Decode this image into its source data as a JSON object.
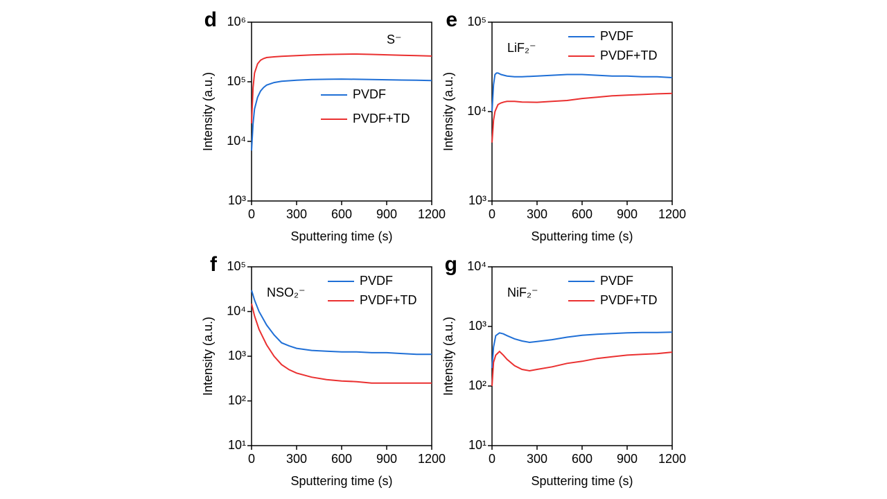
{
  "chart_data": [
    {
      "type": "line",
      "panel": "d",
      "annotation": "S⁻",
      "xlabel": "Sputtering time (s)",
      "ylabel": "Intensity (a.u.)",
      "xlim": [
        0,
        1200
      ],
      "xticks": [
        0,
        300,
        600,
        900,
        1200
      ],
      "log_y": true,
      "ylim": [
        1000,
        1000000
      ],
      "yticks": [
        {
          "value": 1000,
          "label": "10³"
        },
        {
          "value": 10000,
          "label": "10⁴"
        },
        {
          "value": 100000,
          "label": "10⁵"
        },
        {
          "value": 1000000,
          "label": "10⁶"
        }
      ],
      "legend": "center right",
      "x": [
        0,
        10,
        20,
        40,
        60,
        80,
        100,
        150,
        200,
        300,
        400,
        500,
        600,
        700,
        800,
        900,
        1000,
        1100,
        1200
      ],
      "series": [
        {
          "name": "PVDF",
          "color": "#1f6fd6",
          "values": [
            7000,
            20000,
            35000,
            55000,
            70000,
            80000,
            88000,
            97000,
            102000,
            106000,
            109000,
            110000,
            111000,
            110000,
            109000,
            108000,
            107000,
            106000,
            105000
          ]
        },
        {
          "name": "PVDF+TD",
          "color": "#ea3030",
          "values": [
            20000,
            80000,
            140000,
            200000,
            230000,
            245000,
            255000,
            262000,
            268000,
            275000,
            282000,
            287000,
            290000,
            292000,
            288000,
            283000,
            279000,
            275000,
            270000
          ]
        }
      ]
    },
    {
      "type": "line",
      "panel": "e",
      "annotation": "LiF₂⁻",
      "xlabel": "Sputtering time (s)",
      "ylabel": "Intensity (a.u.)",
      "xlim": [
        0,
        1200
      ],
      "xticks": [
        0,
        300,
        600,
        900,
        1200
      ],
      "log_y": true,
      "ylim": [
        1000,
        100000
      ],
      "yticks": [
        {
          "value": 1000,
          "label": "10³"
        },
        {
          "value": 10000,
          "label": "10⁴"
        },
        {
          "value": 100000,
          "label": "10⁵"
        }
      ],
      "legend": "upper right",
      "x": [
        0,
        10,
        20,
        30,
        40,
        60,
        80,
        100,
        150,
        200,
        300,
        400,
        500,
        600,
        700,
        800,
        900,
        1000,
        1100,
        1200
      ],
      "series": [
        {
          "name": "PVDF",
          "color": "#1f6fd6",
          "values": [
            10000,
            20000,
            26000,
            27000,
            27000,
            26000,
            25500,
            25000,
            24500,
            24500,
            25000,
            25500,
            26000,
            26000,
            25500,
            25000,
            25000,
            24500,
            24500,
            24000
          ]
        },
        {
          "name": "PVDF+TD",
          "color": "#ea3030",
          "values": [
            4500,
            8000,
            10000,
            11000,
            12000,
            12500,
            12800,
            13000,
            13000,
            12800,
            12700,
            13000,
            13300,
            14000,
            14500,
            15000,
            15300,
            15500,
            15800,
            16000
          ]
        }
      ]
    },
    {
      "type": "line",
      "panel": "f",
      "annotation": "NSO₂⁻",
      "xlabel": "Sputtering time (s)",
      "ylabel": "Intensity (a.u.)",
      "xlim": [
        0,
        1200
      ],
      "xticks": [
        0,
        300,
        600,
        900,
        1200
      ],
      "log_y": true,
      "ylim": [
        10,
        100000
      ],
      "yticks": [
        {
          "value": 10,
          "label": "10¹"
        },
        {
          "value": 100,
          "label": "10²"
        },
        {
          "value": 1000,
          "label": "10³"
        },
        {
          "value": 10000,
          "label": "10⁴"
        },
        {
          "value": 100000,
          "label": "10⁵"
        }
      ],
      "legend": "upper right",
      "x": [
        0,
        20,
        50,
        100,
        150,
        200,
        250,
        300,
        400,
        500,
        600,
        700,
        800,
        900,
        1000,
        1100,
        1200
      ],
      "series": [
        {
          "name": "PVDF",
          "color": "#1f6fd6",
          "values": [
            30000,
            18000,
            10000,
            5000,
            3000,
            2000,
            1700,
            1500,
            1350,
            1300,
            1250,
            1250,
            1200,
            1200,
            1150,
            1100,
            1100
          ]
        },
        {
          "name": "PVDF+TD",
          "color": "#ea3030",
          "values": [
            15000,
            8000,
            4000,
            1800,
            1000,
            650,
            500,
            420,
            340,
            300,
            280,
            270,
            250,
            250,
            250,
            250,
            250
          ]
        }
      ]
    },
    {
      "type": "line",
      "panel": "g",
      "annotation": "NiF₂⁻",
      "xlabel": "Sputtering time (s)",
      "ylabel": "Intensity (a.u.)",
      "xlim": [
        0,
        1200
      ],
      "xticks": [
        0,
        300,
        600,
        900,
        1200
      ],
      "log_y": true,
      "ylim": [
        10,
        10000
      ],
      "yticks": [
        {
          "value": 10,
          "label": "10¹"
        },
        {
          "value": 100,
          "label": "10²"
        },
        {
          "value": 1000,
          "label": "10³"
        },
        {
          "value": 10000,
          "label": "10⁴"
        }
      ],
      "legend": "upper right",
      "x": [
        0,
        10,
        25,
        50,
        75,
        100,
        150,
        200,
        250,
        300,
        400,
        500,
        600,
        700,
        800,
        900,
        1000,
        1100,
        1200
      ],
      "series": [
        {
          "name": "PVDF",
          "color": "#1f6fd6",
          "values": [
            200,
            450,
            700,
            780,
            750,
            700,
            620,
            570,
            540,
            560,
            600,
            660,
            710,
            740,
            760,
            780,
            790,
            790,
            800
          ]
        },
        {
          "name": "PVDF+TD",
          "color": "#ea3030",
          "values": [
            100,
            250,
            330,
            380,
            330,
            280,
            220,
            190,
            180,
            190,
            210,
            240,
            260,
            290,
            310,
            330,
            340,
            350,
            370
          ]
        }
      ]
    }
  ]
}
